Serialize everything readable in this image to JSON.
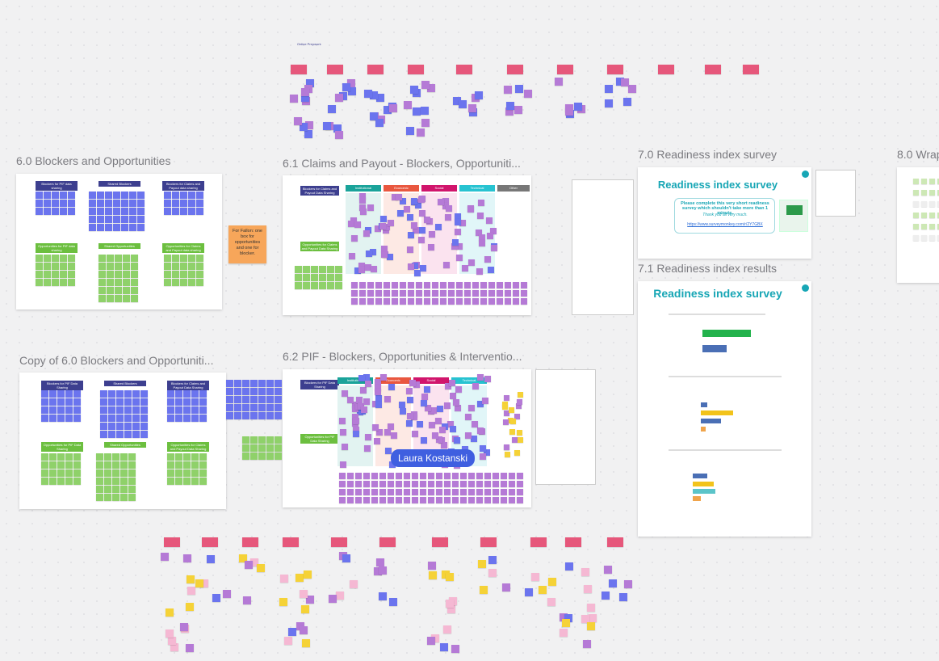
{
  "top_label": "Online Prepwork",
  "frame_60": {
    "title": "6.0 Blockers and Opportunities",
    "headers": [
      "Blockers for PIF data sharing",
      "Shared Blockers",
      "Blockers for Claims and Payout data sharing",
      "Opportunities for PIF data sharing",
      "Shared Opportunities",
      "Opportunities for Claims and Payout data sharing"
    ]
  },
  "frame_61": {
    "title": "6.1 Claims and Payout - Blockers, Opportuniti...",
    "headers": [
      "Blockers for Claims and Payout Data Sharing",
      "Opportunities for Claims and Payout Data Sharing"
    ],
    "columns": [
      "Institutional",
      "Economic",
      "Social",
      "Technical",
      "Other"
    ]
  },
  "frame_70": {
    "title": "7.0 Readiness index survey",
    "heading": "Readiness index survey",
    "body": "Please complete this very short readiness survey which shouldn't take more than 1 minute.",
    "thanks": "Thank you all very much.",
    "link": "https://www.surveymonkey.com/r/2Y7GBX"
  },
  "frame_71": {
    "title": "7.1 Readiness index results",
    "heading": "Readiness index survey"
  },
  "frame_80": {
    "title": "8.0 Wrap"
  },
  "copy_frame": {
    "title": "Copy of 6.0 Blockers and Opportuniti...",
    "headers": [
      "Blockers for PIF Data Sharing",
      "Shared Blockers",
      "Blockers for Claims and Payout Data Sharing",
      "Opportunities for PIF Data Sharing",
      "Shared Opportunities",
      "Opportunities for Claims and Payout Data Sharing"
    ]
  },
  "frame_62": {
    "title": "6.2 PIF - Blockers, Opportunities & Interventio...",
    "headers": [
      "Blockers for PIF Data Sharing",
      "Opportunities for PIF Data Sharing"
    ],
    "columns": [
      "Institutional",
      "Economic",
      "Social",
      "Technical"
    ]
  },
  "sticky": "For Fallon: one box for opportunities and one for blocker.",
  "cursor": "Laura Kostanski"
}
